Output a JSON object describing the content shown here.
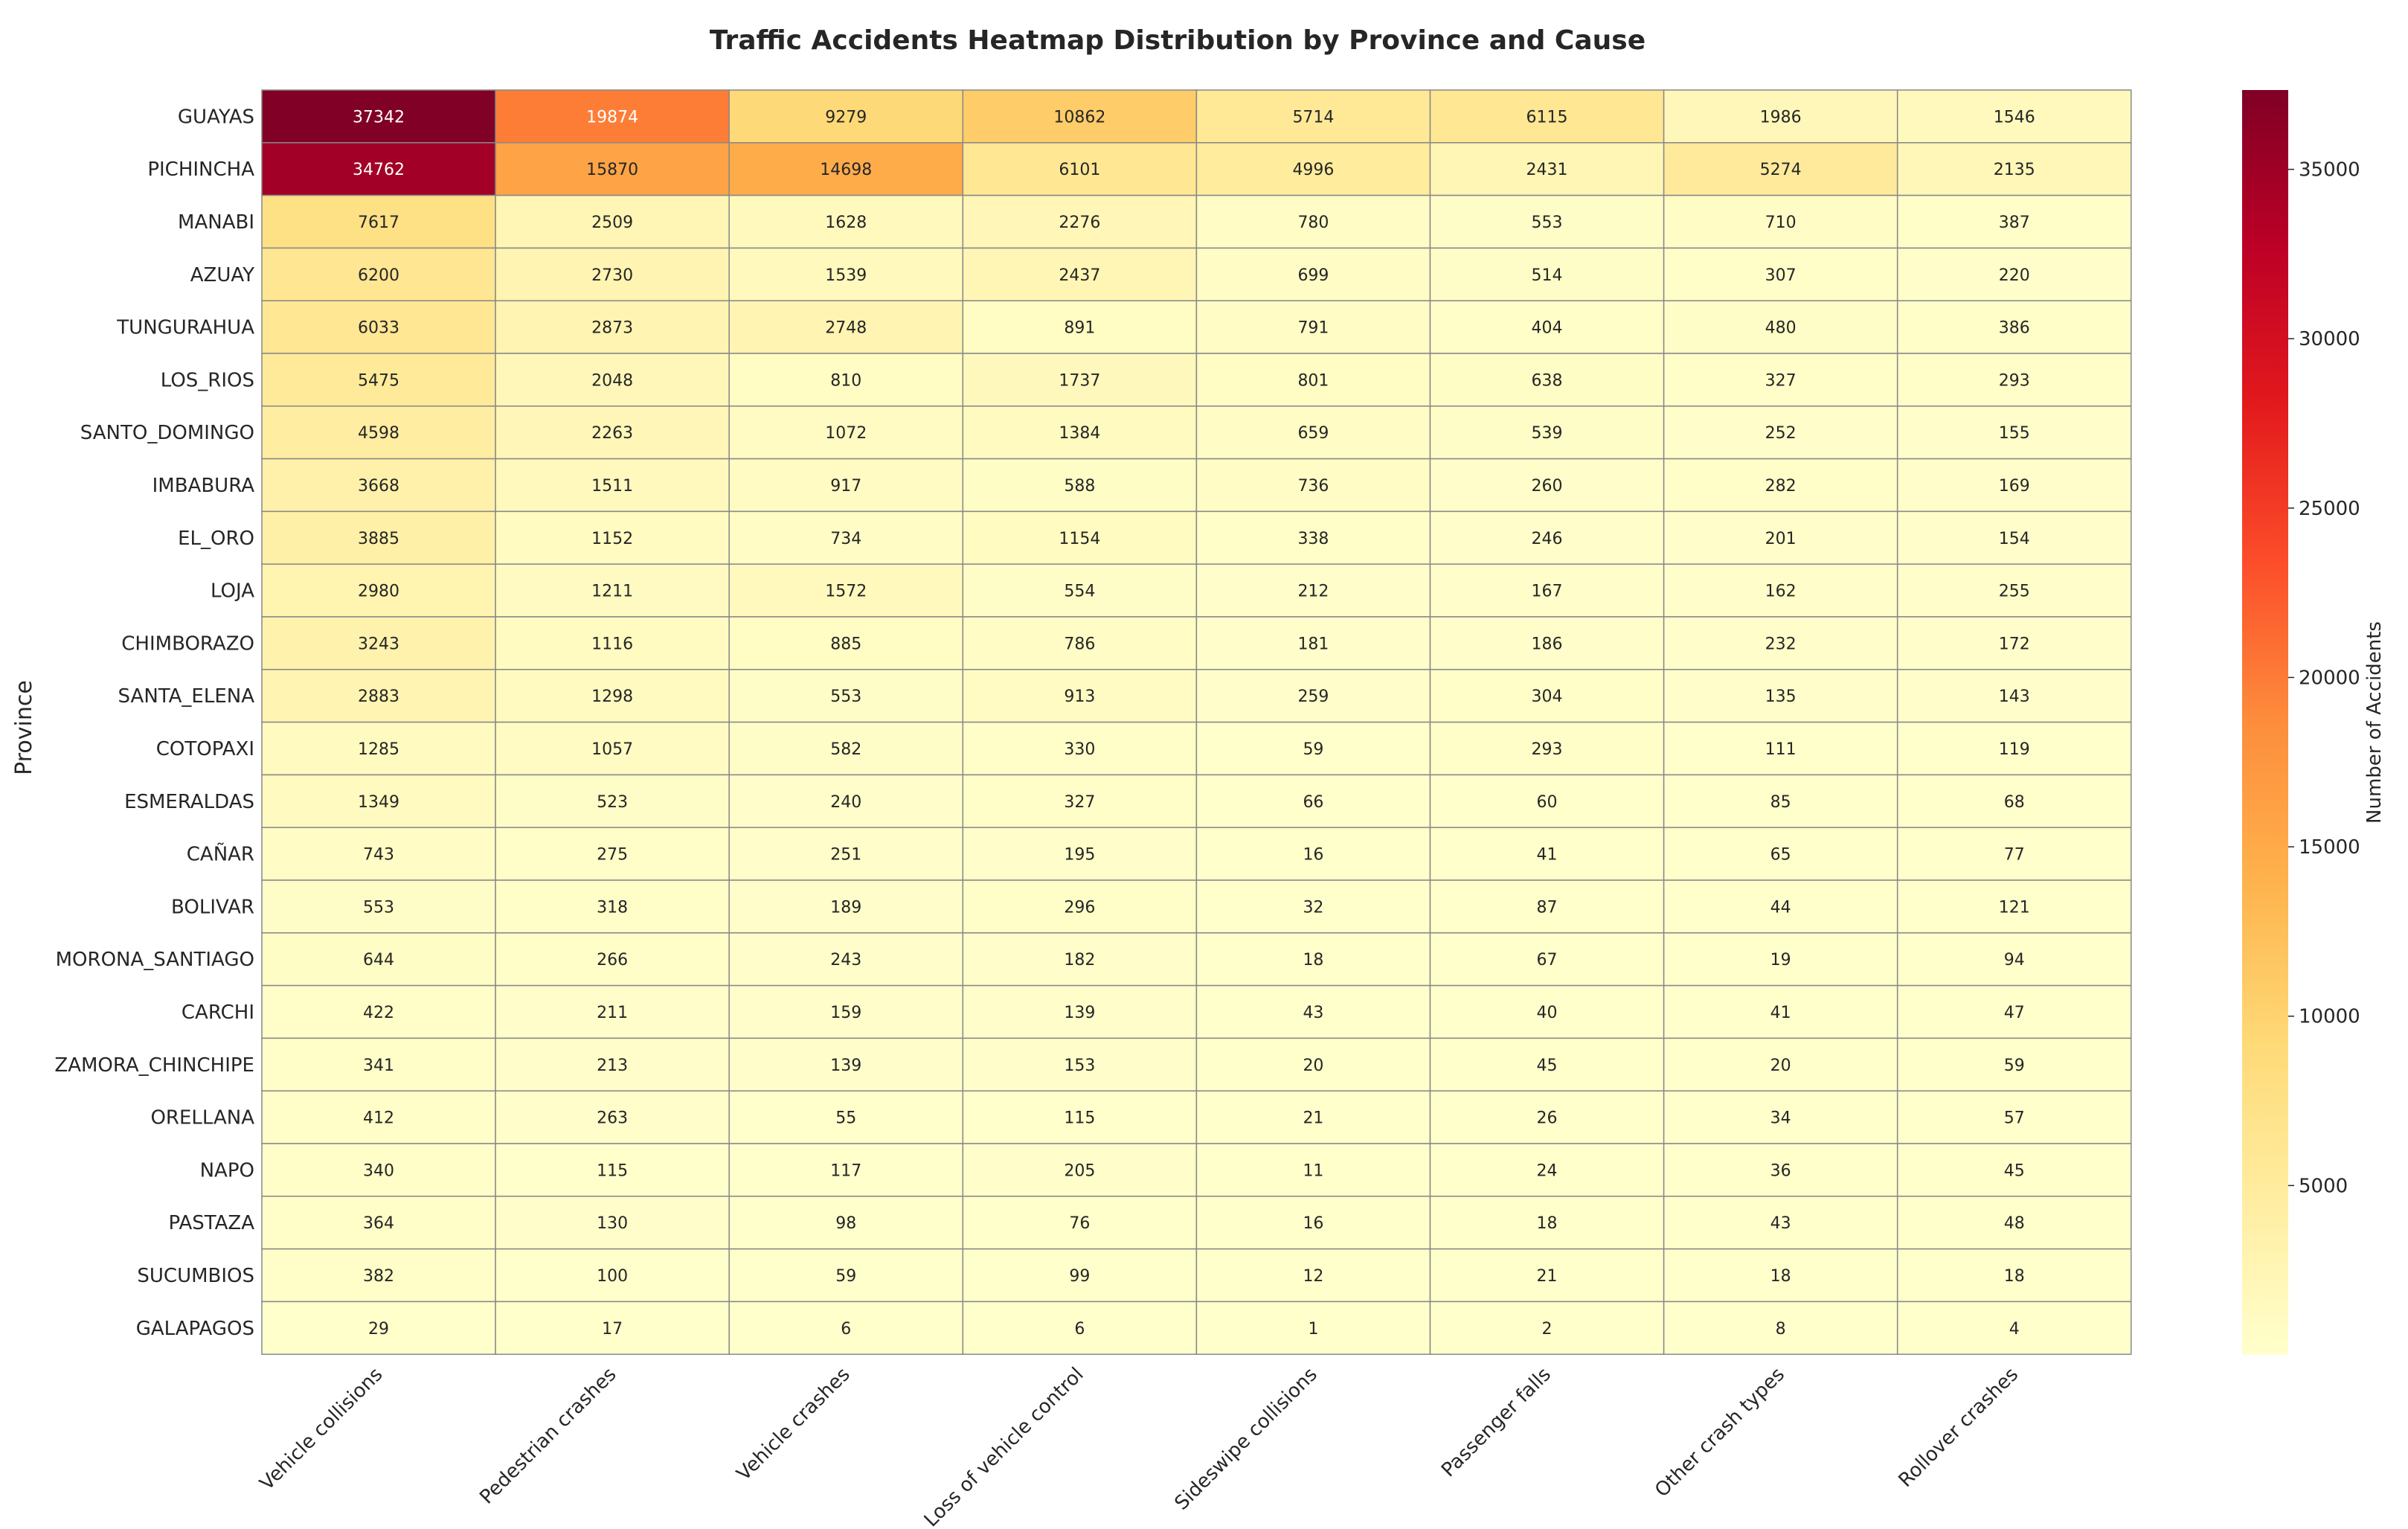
{
  "chart_data": {
    "type": "heatmap",
    "title": "Traffic Accidents Heatmap Distribution by Province and Cause",
    "xlabel": "",
    "ylabel": "Province",
    "colorbar_label": "Number of Accidents",
    "colormap": "YlOrRd",
    "colorbar_range": [
      0,
      37342
    ],
    "colorbar_ticks": [
      5000,
      10000,
      15000,
      20000,
      25000,
      30000,
      35000
    ],
    "columns": [
      "Vehicle collisions",
      "Pedestrian crashes",
      "Vehicle crashes",
      "Loss of vehicle control",
      "Sideswipe collisions",
      "Passenger falls",
      "Other crash types",
      "Rollover crashes"
    ],
    "rows": [
      "GUAYAS",
      "PICHINCHA",
      "MANABI",
      "AZUAY",
      "TUNGURAHUA",
      "LOS_RIOS",
      "SANTO_DOMINGO",
      "IMBABURA",
      "EL_ORO",
      "LOJA",
      "CHIMBORAZO",
      "SANTA_ELENA",
      "COTOPAXI",
      "ESMERALDAS",
      "CAÑAR",
      "BOLIVAR",
      "MORONA_SANTIAGO",
      "CARCHI",
      "ZAMORA_CHINCHIPE",
      "ORELLANA",
      "NAPO",
      "PASTAZA",
      "SUCUMBIOS",
      "GALAPAGOS"
    ],
    "values": [
      [
        37342,
        19874,
        9279,
        10862,
        5714,
        6115,
        1986,
        1546
      ],
      [
        34762,
        15870,
        14698,
        6101,
        4996,
        2431,
        5274,
        2135
      ],
      [
        7617,
        2509,
        1628,
        2276,
        780,
        553,
        710,
        387
      ],
      [
        6200,
        2730,
        1539,
        2437,
        699,
        514,
        307,
        220
      ],
      [
        6033,
        2873,
        2748,
        891,
        791,
        404,
        480,
        386
      ],
      [
        5475,
        2048,
        810,
        1737,
        801,
        638,
        327,
        293
      ],
      [
        4598,
        2263,
        1072,
        1384,
        659,
        539,
        252,
        155
      ],
      [
        3668,
        1511,
        917,
        588,
        736,
        260,
        282,
        169
      ],
      [
        3885,
        1152,
        734,
        1154,
        338,
        246,
        201,
        154
      ],
      [
        2980,
        1211,
        1572,
        554,
        212,
        167,
        162,
        255
      ],
      [
        3243,
        1116,
        885,
        786,
        181,
        186,
        232,
        172
      ],
      [
        2883,
        1298,
        553,
        913,
        259,
        304,
        135,
        143
      ],
      [
        1285,
        1057,
        582,
        330,
        59,
        293,
        111,
        119
      ],
      [
        1349,
        523,
        240,
        327,
        66,
        60,
        85,
        68
      ],
      [
        743,
        275,
        251,
        195,
        16,
        41,
        65,
        77
      ],
      [
        553,
        318,
        189,
        296,
        32,
        87,
        44,
        121
      ],
      [
        644,
        266,
        243,
        182,
        18,
        67,
        19,
        94
      ],
      [
        422,
        211,
        159,
        139,
        43,
        40,
        41,
        47
      ],
      [
        341,
        213,
        139,
        153,
        20,
        45,
        20,
        59
      ],
      [
        412,
        263,
        55,
        115,
        21,
        26,
        34,
        57
      ],
      [
        340,
        115,
        117,
        205,
        11,
        24,
        36,
        45
      ],
      [
        364,
        130,
        98,
        76,
        16,
        18,
        43,
        48
      ],
      [
        382,
        100,
        59,
        99,
        12,
        21,
        18,
        18
      ],
      [
        29,
        17,
        6,
        6,
        1,
        2,
        8,
        4
      ]
    ]
  }
}
